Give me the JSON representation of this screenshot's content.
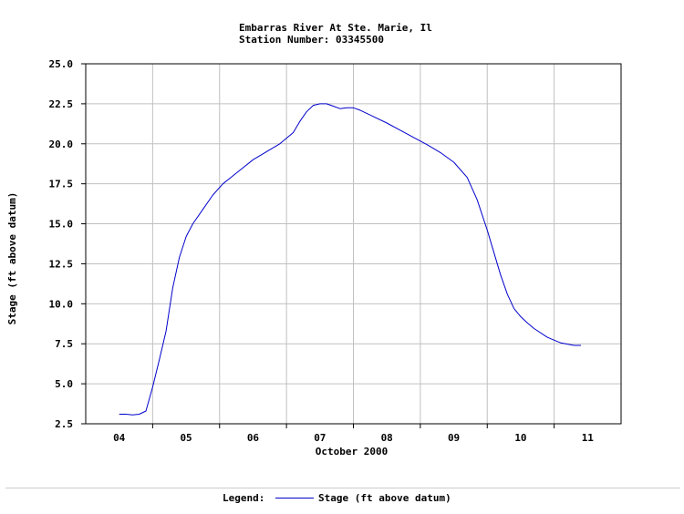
{
  "chart_data": {
    "type": "line",
    "title_lines": [
      "Embarras River At Ste. Marie, Il",
      "Station Number: 03345500"
    ],
    "xlabel": "October 2000",
    "ylabel": "Stage (ft above datum)",
    "x_ticks": [
      "04",
      "05",
      "06",
      "07",
      "08",
      "09",
      "10",
      "11"
    ],
    "y_ticks": [
      "2.5",
      "5.0",
      "7.5",
      "10.0",
      "12.5",
      "15.0",
      "17.5",
      "20.0",
      "22.5",
      "25.0"
    ],
    "ylim": [
      2.5,
      25.0
    ],
    "xlim_days": [
      3.5,
      11.5
    ],
    "grid": true,
    "series": [
      {
        "name": "Stage (ft above datum)",
        "color": "#0000cc",
        "x_day": [
          4.0,
          4.1,
          4.2,
          4.3,
          4.4,
          4.5,
          4.6,
          4.7,
          4.8,
          4.9,
          5.0,
          5.1,
          5.25,
          5.4,
          5.55,
          5.7,
          5.85,
          6.0,
          6.2,
          6.4,
          6.6,
          6.7,
          6.8,
          6.9,
          7.0,
          7.1,
          7.2,
          7.3,
          7.4,
          7.5,
          7.6,
          7.8,
          8.0,
          8.2,
          8.4,
          8.6,
          8.8,
          9.0,
          9.2,
          9.35,
          9.5,
          9.6,
          9.7,
          9.8,
          9.9,
          10.0,
          10.1,
          10.2,
          10.4,
          10.6,
          10.8,
          10.9
        ],
        "y": [
          3.1,
          3.1,
          3.05,
          3.1,
          3.3,
          4.8,
          6.5,
          8.3,
          11.0,
          12.9,
          14.2,
          15.0,
          15.9,
          16.8,
          17.5,
          18.0,
          18.5,
          19.0,
          19.5,
          20.0,
          20.7,
          21.4,
          22.0,
          22.4,
          22.5,
          22.5,
          22.35,
          22.2,
          22.25,
          22.25,
          22.1,
          21.7,
          21.3,
          20.85,
          20.4,
          19.95,
          19.45,
          18.85,
          17.9,
          16.5,
          14.6,
          13.2,
          11.8,
          10.6,
          9.7,
          9.2,
          8.8,
          8.45,
          7.9,
          7.55,
          7.4,
          7.4
        ]
      }
    ]
  },
  "legend": {
    "label": "Legend:",
    "entry": "Stage (ft above datum)"
  }
}
